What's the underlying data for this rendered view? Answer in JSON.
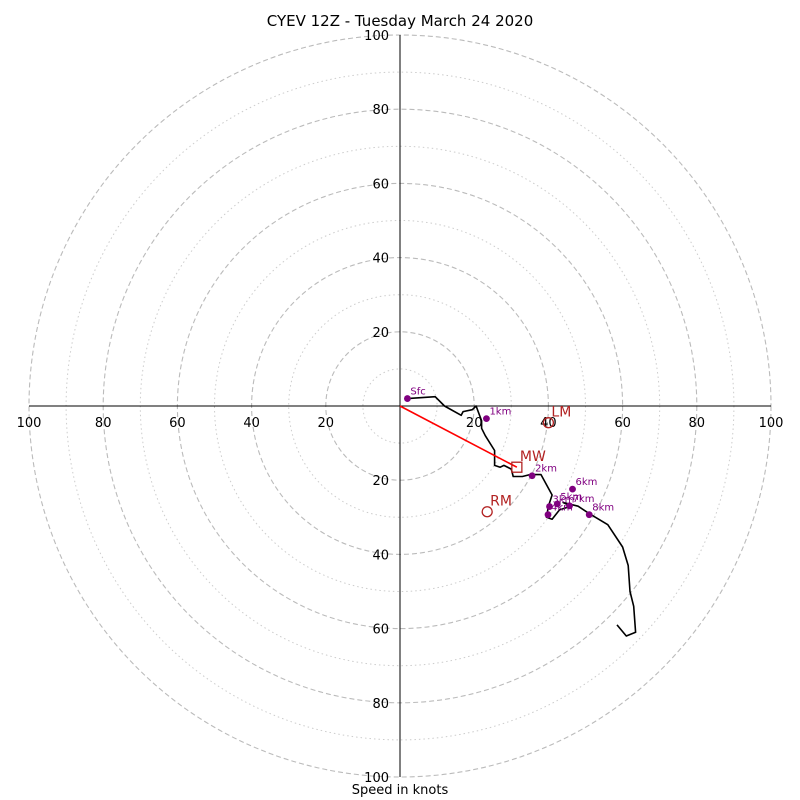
{
  "chart_data": {
    "type": "line",
    "title": "CYEV 12Z - Tuesday March 24 2020",
    "xlabel": "Speed in knots",
    "ylabel": "",
    "xlim": [
      -100,
      100
    ],
    "ylim": [
      -100,
      100
    ],
    "ring_values": [
      20,
      40,
      60,
      80,
      100
    ],
    "minor_ring_values": [
      10,
      30,
      50,
      70,
      90
    ],
    "tick_labels": [
      "20",
      "40",
      "60",
      "80",
      "100"
    ],
    "hodograph": {
      "u": [
        2,
        9.5,
        12,
        16.5,
        17,
        19.5,
        20.5,
        22,
        22,
        23,
        25.5,
        25.5,
        27,
        28,
        30,
        30.5,
        32,
        33,
        35,
        35,
        38,
        38,
        41,
        40,
        39.5,
        41,
        43,
        46,
        44,
        48,
        51,
        56,
        60,
        61.5,
        62,
        63,
        63.5,
        61,
        58.5
      ],
      "v": [
        2,
        2.5,
        0,
        -2.5,
        -1.5,
        -1,
        0,
        -4,
        -6,
        -8,
        -12,
        -16,
        -16.5,
        -16,
        -17,
        -19,
        -19,
        -19,
        -18.5,
        -18.5,
        -18.5,
        -18.5,
        -24,
        -27,
        -30,
        -30.5,
        -28,
        -27,
        -26,
        -27,
        -29,
        -32,
        -38,
        -43,
        -50,
        -54,
        -61,
        -62,
        -59
      ]
    },
    "height_markers": [
      {
        "label": "Sfc",
        "u": 2,
        "v": 2
      },
      {
        "label": "1km",
        "u": 23.3,
        "v": -3.4
      },
      {
        "label": "2km",
        "u": 35.6,
        "v": -18.8
      },
      {
        "label": "3km",
        "u": 40.3,
        "v": -27.1
      },
      {
        "label": "4km",
        "u": 39.9,
        "v": -29.3
      },
      {
        "label": "5km",
        "u": 42.4,
        "v": -26.4
      },
      {
        "label": "6km",
        "u": 46.5,
        "v": -22.4
      },
      {
        "label": "7km",
        "u": 45.7,
        "v": -26.9
      },
      {
        "label": "8km",
        "u": 51,
        "v": -29.3
      }
    ],
    "storm_motion": [
      {
        "label": "LM",
        "u": 40,
        "v": -4.5,
        "marker": "circle"
      },
      {
        "label": "MW",
        "u": 31.5,
        "v": -16.5,
        "marker": "square"
      },
      {
        "label": "RM",
        "u": 23.5,
        "v": -28.5,
        "marker": "circle"
      }
    ],
    "mean_wind_vector": {
      "u": 31.5,
      "v": -16.5
    },
    "colors": {
      "hodograph": "#000000",
      "markers": "#800080",
      "storm_motion": "#b22222",
      "vector": "#ff0000",
      "rings": "#bbbbbb"
    }
  }
}
